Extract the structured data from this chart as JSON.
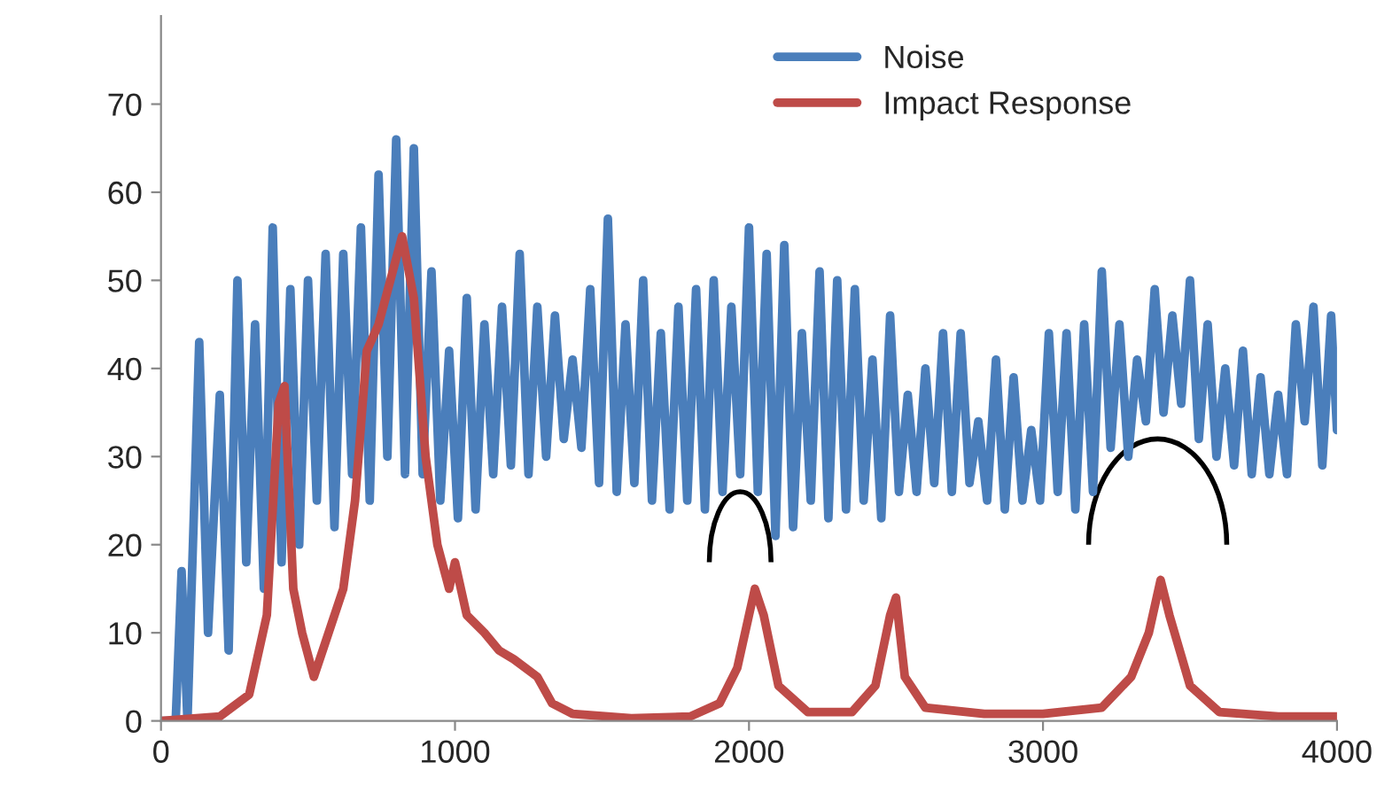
{
  "chart_data": {
    "type": "line",
    "xlim": [
      0,
      4000
    ],
    "xticks": [
      0,
      1000,
      2000,
      3000,
      4000
    ],
    "ylim": [
      0,
      80
    ],
    "yticks": [
      0,
      10,
      20,
      30,
      40,
      50,
      60,
      70
    ],
    "grid": false,
    "legend": "top right",
    "marker": "none",
    "line_style": "solid",
    "series": [
      {
        "name": "Noise",
        "color": "#4a7ebb",
        "x": [
          0,
          50,
          70,
          90,
          130,
          160,
          200,
          230,
          260,
          290,
          320,
          350,
          380,
          410,
          440,
          470,
          500,
          530,
          560,
          590,
          620,
          650,
          680,
          710,
          740,
          770,
          800,
          830,
          860,
          890,
          920,
          950,
          980,
          1010,
          1040,
          1070,
          1100,
          1130,
          1160,
          1190,
          1220,
          1250,
          1280,
          1310,
          1340,
          1370,
          1400,
          1430,
          1460,
          1490,
          1520,
          1550,
          1580,
          1610,
          1640,
          1670,
          1700,
          1730,
          1760,
          1790,
          1820,
          1850,
          1880,
          1910,
          1940,
          1970,
          2000,
          2030,
          2060,
          2090,
          2120,
          2150,
          2180,
          2210,
          2240,
          2270,
          2300,
          2330,
          2360,
          2390,
          2420,
          2450,
          2480,
          2510,
          2540,
          2570,
          2600,
          2630,
          2660,
          2690,
          2720,
          2750,
          2780,
          2810,
          2840,
          2870,
          2900,
          2930,
          2960,
          2990,
          3020,
          3050,
          3080,
          3110,
          3140,
          3170,
          3200,
          3230,
          3260,
          3290,
          3320,
          3350,
          3380,
          3410,
          3440,
          3470,
          3500,
          3530,
          3560,
          3590,
          3620,
          3650,
          3680,
          3710,
          3740,
          3770,
          3800,
          3830,
          3860,
          3890,
          3920,
          3950,
          3980,
          4000
        ],
        "values": [
          0,
          0,
          17,
          0,
          43,
          10,
          37,
          8,
          50,
          18,
          45,
          15,
          56,
          18,
          49,
          20,
          50,
          25,
          53,
          22,
          53,
          28,
          56,
          25,
          62,
          30,
          66,
          28,
          65,
          28,
          51,
          25,
          42,
          23,
          48,
          24,
          45,
          28,
          47,
          29,
          53,
          28,
          47,
          30,
          46,
          32,
          41,
          31,
          49,
          27,
          57,
          26,
          45,
          27,
          50,
          25,
          44,
          24,
          47,
          25,
          49,
          24,
          50,
          26,
          47,
          28,
          56,
          26,
          53,
          21,
          54,
          22,
          44,
          25,
          51,
          23,
          50,
          24,
          49,
          25,
          41,
          23,
          46,
          26,
          37,
          26,
          40,
          27,
          44,
          26,
          44,
          27,
          34,
          25,
          41,
          24,
          39,
          25,
          33,
          25,
          44,
          26,
          44,
          24,
          45,
          26,
          51,
          31,
          45,
          30,
          41,
          34,
          49,
          35,
          46,
          36,
          50,
          32,
          45,
          30,
          40,
          29,
          42,
          28,
          39,
          28,
          37,
          28,
          45,
          34,
          47,
          29,
          46,
          33
        ]
      },
      {
        "name": "Impact Response",
        "color": "#be4b48",
        "x": [
          0,
          200,
          300,
          360,
          400,
          420,
          450,
          480,
          520,
          560,
          620,
          660,
          700,
          740,
          780,
          820,
          860,
          900,
          940,
          980,
          1000,
          1040,
          1100,
          1150,
          1200,
          1280,
          1330,
          1400,
          1600,
          1800,
          1900,
          1960,
          2000,
          2020,
          2050,
          2100,
          2200,
          2350,
          2430,
          2480,
          2500,
          2530,
          2600,
          2800,
          3000,
          3200,
          3300,
          3360,
          3400,
          3430,
          3500,
          3600,
          3800,
          4000
        ],
        "values": [
          0,
          0.5,
          3,
          12,
          36,
          38,
          15,
          10,
          5,
          9,
          15,
          25,
          42,
          45,
          50,
          55,
          48,
          30,
          20,
          15,
          18,
          12,
          10,
          8,
          7,
          5,
          2,
          0.8,
          0.3,
          0.5,
          2,
          6,
          12,
          15,
          12,
          4,
          1,
          1,
          4,
          12,
          14,
          5,
          1.5,
          0.8,
          0.8,
          1.5,
          5,
          10,
          16,
          12,
          4,
          1,
          0.5,
          0.5
        ]
      }
    ]
  }
}
